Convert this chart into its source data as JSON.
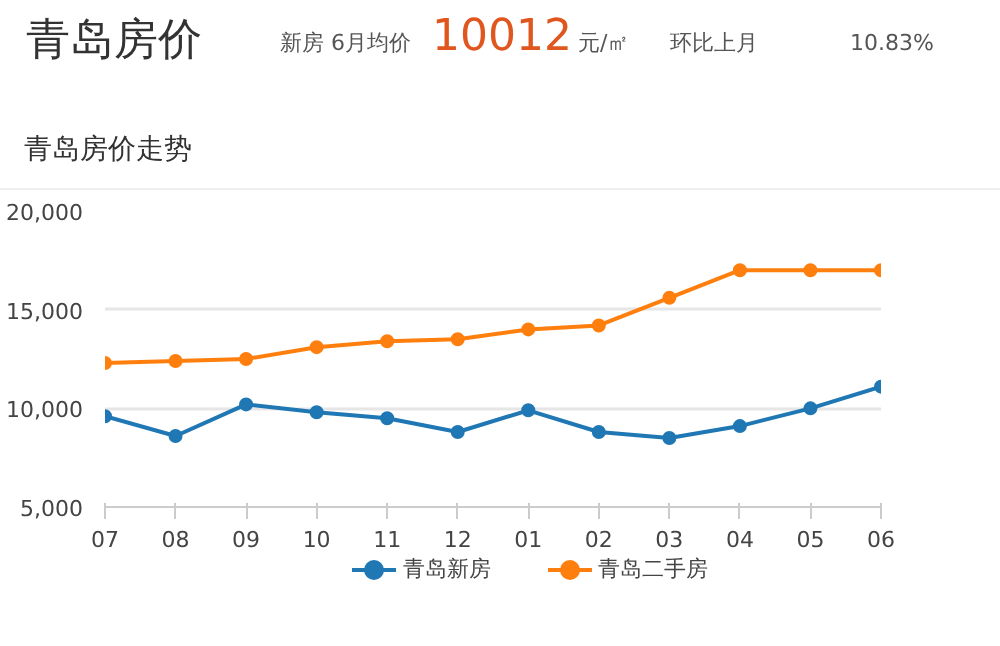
{
  "chart_data": {
    "type": "line",
    "title": "青岛房价",
    "subtitle": "青岛房价走势",
    "annotations": [
      "新房 6月均价",
      "10012",
      "元/㎡",
      "环比上月",
      "10.83%"
    ],
    "categories": [
      "07",
      "08",
      "09",
      "10",
      "11",
      "12",
      "01",
      "02",
      "03",
      "04",
      "05",
      "06"
    ],
    "series": [
      {
        "name": "青岛新房",
        "color": "#1f77b4",
        "values": [
          9600,
          8600,
          10200,
          9800,
          9500,
          8800,
          9900,
          8800,
          8500,
          9100,
          10000,
          11100
        ]
      },
      {
        "name": "青岛二手房",
        "color": "#ff7f0e",
        "values": [
          12300,
          12400,
          12500,
          13100,
          13400,
          13500,
          14000,
          14200,
          15600,
          17000,
          17000,
          17000
        ]
      }
    ],
    "ylim": [
      5000,
      20000
    ],
    "yticks": [
      {
        "value": 5000,
        "label": "5,000"
      },
      {
        "value": 10000,
        "label": "10,000"
      },
      {
        "value": 15000,
        "label": "15,000"
      },
      {
        "value": 20000,
        "label": "20,000"
      }
    ],
    "grid": "y",
    "legend": "bottom",
    "marker": "circle",
    "line_style": "solid"
  }
}
